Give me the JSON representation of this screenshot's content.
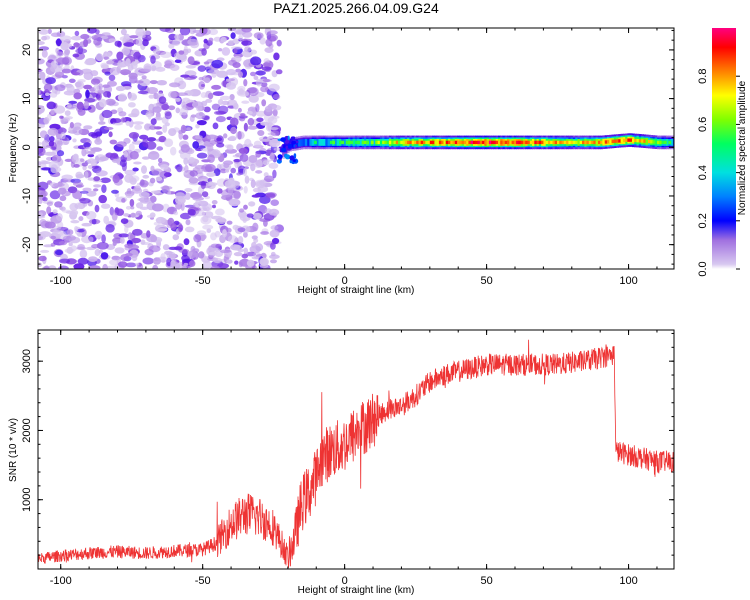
{
  "title": "PAZ1.2025.266.04.09.G24",
  "chart_data": [
    {
      "type": "heatmap",
      "xlabel": "Height of straight line (km)",
      "ylabel": "Frequency (Hz)",
      "xlim": [
        -108,
        116
      ],
      "ylim": [
        -25,
        24.5
      ],
      "xticks": [
        -100,
        -50,
        0,
        50,
        100
      ],
      "yticks": [
        -20,
        -10,
        0,
        10,
        20
      ],
      "colorbar": {
        "label": "Normalized spectral amplitude",
        "range": [
          0.0,
          1.0
        ],
        "ticks": [
          0.0,
          0.2,
          0.4,
          0.6,
          0.8
        ],
        "colormap": "rainbow"
      },
      "regions": [
        {
          "x_range": [
            -108,
            -23
          ],
          "f_range": [
            -25,
            24.5
          ],
          "pattern": "noise",
          "amplitude": [
            0.05,
            0.25
          ]
        },
        {
          "x_range": [
            -23,
            116
          ],
          "f_center": 1.0,
          "f_halfwidth": 1.2,
          "pattern": "narrow-band",
          "amplitude": [
            0.3,
            0.9
          ]
        }
      ],
      "ridge_points": {
        "x": [
          -22,
          -20,
          -15,
          -10,
          0,
          10,
          20,
          30,
          40,
          50,
          60,
          70,
          80,
          90,
          100,
          110,
          116
        ],
        "f": [
          -1.0,
          0.5,
          1.0,
          1.0,
          1.0,
          1.0,
          1.0,
          1.0,
          1.0,
          1.0,
          1.0,
          1.0,
          1.0,
          1.0,
          1.5,
          1.0,
          1.0
        ],
        "amplitude": [
          0.2,
          0.35,
          0.45,
          0.5,
          0.55,
          0.6,
          0.75,
          0.8,
          0.85,
          0.9,
          0.88,
          0.8,
          0.7,
          0.8,
          0.85,
          0.6,
          0.5
        ]
      }
    },
    {
      "type": "line",
      "xlabel": "Height of straight line (km)",
      "ylabel": "SNR (10 * v/v)",
      "xlim": [
        -108,
        116
      ],
      "ylim": [
        0,
        3450
      ],
      "xticks": [
        -100,
        -50,
        0,
        50,
        100
      ],
      "yticks": [
        1000,
        2000,
        3000
      ],
      "grid": false,
      "series": [
        {
          "color": "#ee3333",
          "x": [
            -108,
            -100,
            -90,
            -80,
            -70,
            -60,
            -50,
            -45,
            -40,
            -35,
            -30,
            -25,
            -20,
            -18,
            -15,
            -12,
            -10,
            -8,
            -5,
            -2,
            0,
            5,
            10,
            15,
            20,
            25,
            30,
            35,
            40,
            45,
            50,
            55,
            60,
            65,
            70,
            75,
            80,
            85,
            90,
            95,
            95.5,
            100,
            105,
            110,
            116
          ],
          "y": [
            150,
            190,
            230,
            250,
            230,
            260,
            280,
            380,
            650,
            800,
            750,
            600,
            170,
            400,
            950,
            1150,
            1350,
            1600,
            1700,
            1750,
            1800,
            2000,
            2150,
            2300,
            2350,
            2500,
            2700,
            2800,
            2850,
            2900,
            2950,
            2950,
            2950,
            2950,
            2950,
            2950,
            2980,
            3000,
            3050,
            3100,
            1700,
            1650,
            1600,
            1550,
            1550
          ],
          "noise": 160
        }
      ]
    }
  ]
}
